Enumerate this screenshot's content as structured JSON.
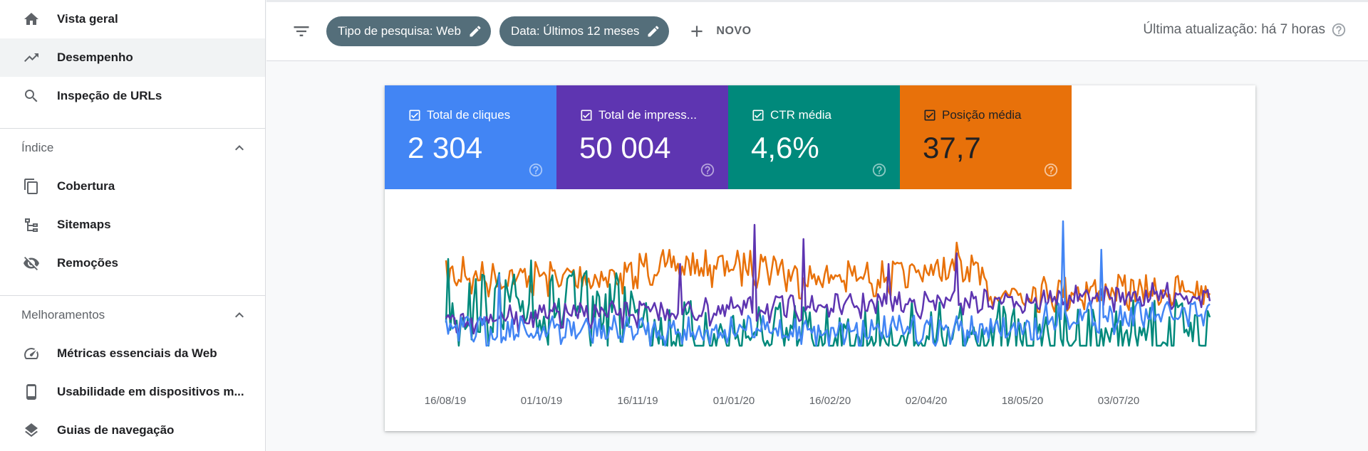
{
  "sidebar": {
    "items_top": [
      {
        "label": "Vista geral",
        "icon": "home-icon",
        "active": false
      },
      {
        "label": "Desempenho",
        "icon": "trending-up-icon",
        "active": true
      },
      {
        "label": "Inspeção de URLs",
        "icon": "search-icon",
        "active": false
      }
    ],
    "section_index": {
      "title": "Índice",
      "items": [
        {
          "label": "Cobertura",
          "icon": "copy-icon"
        },
        {
          "label": "Sitemaps",
          "icon": "sitemap-icon"
        },
        {
          "label": "Remoções",
          "icon": "visibility-off-icon"
        }
      ]
    },
    "section_enh": {
      "title": "Melhoramentos",
      "items": [
        {
          "label": "Métricas essenciais da Web",
          "icon": "speed-gauge-icon"
        },
        {
          "label": "Usabilidade em dispositivos m...",
          "icon": "smartphone-icon"
        },
        {
          "label": "Guias de navegação",
          "icon": "layers-icon"
        }
      ]
    }
  },
  "topbar": {
    "chip_search_type": "Tipo de pesquisa: Web",
    "chip_date": "Data: Últimos 12 meses",
    "new_label": "NOVO",
    "last_update": "Última atualização: há 7 horas"
  },
  "metrics": [
    {
      "label": "Total de cliques",
      "value": "2 304",
      "color": "#4285f4",
      "checked": true
    },
    {
      "label": "Total de impress...",
      "value": "50 004",
      "color": "#5e35b1",
      "checked": true
    },
    {
      "label": "CTR média",
      "value": "4,6%",
      "color": "#00897b",
      "checked": true
    },
    {
      "label": "Posição média",
      "value": "37,7",
      "color": "#e8710a",
      "checked": true
    }
  ],
  "chart_data": {
    "type": "line",
    "x_tick_labels": [
      "16/08/19",
      "01/10/19",
      "16/11/19",
      "01/01/20",
      "16/02/20",
      "02/04/20",
      "18/05/20",
      "03/07/20"
    ],
    "series_colors": {
      "clicks": "#4285f4",
      "impressions": "#5e35b1",
      "ctr": "#00897b",
      "position": "#e8710a"
    },
    "grid": false,
    "axes_values_shown": false
  }
}
